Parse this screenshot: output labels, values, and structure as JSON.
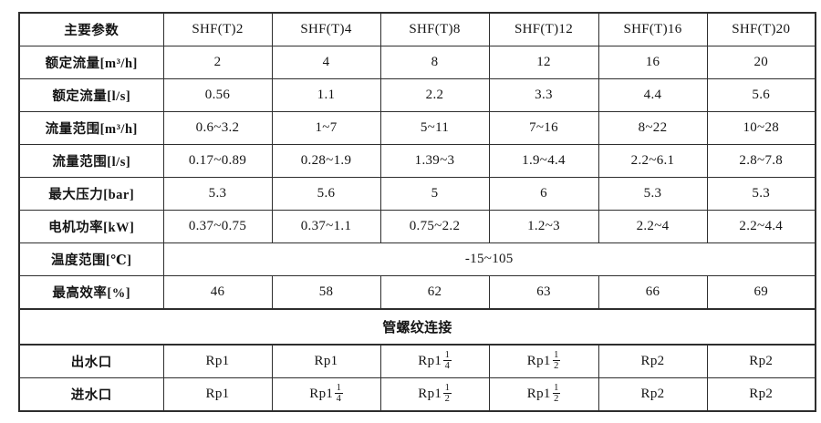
{
  "page": {
    "background_color": "#ffffff",
    "border_color": "#2e2e2e",
    "text_color": "#141414"
  },
  "table": {
    "header": {
      "param_label": "主要参数",
      "models": [
        "SHF(T)2",
        "SHF(T)4",
        "SHF(T)8",
        "SHF(T)12",
        "SHF(T)16",
        "SHF(T)20"
      ]
    },
    "rows": [
      {
        "type": "data",
        "label": "额定流量[m³/h]",
        "values": [
          "2",
          "4",
          "8",
          "12",
          "16",
          "20"
        ]
      },
      {
        "type": "data",
        "label": "额定流量[l/s]",
        "values": [
          "0.56",
          "1.1",
          "2.2",
          "3.3",
          "4.4",
          "5.6"
        ]
      },
      {
        "type": "data",
        "label": "流量范围[m³/h]",
        "values": [
          "0.6~3.2",
          "1~7",
          "5~11",
          "7~16",
          "8~22",
          "10~28"
        ]
      },
      {
        "type": "data",
        "label": "流量范围[l/s]",
        "values": [
          "0.17~0.89",
          "0.28~1.9",
          "1.39~3",
          "1.9~4.4",
          "2.2~6.1",
          "2.8~7.8"
        ]
      },
      {
        "type": "data",
        "label": "最大压力[bar]",
        "values": [
          "5.3",
          "5.6",
          "5",
          "6",
          "5.3",
          "5.3"
        ]
      },
      {
        "type": "data",
        "label": "电机功率[kW]",
        "values": [
          "0.37~0.75",
          "0.37~1.1",
          "0.75~2.2",
          "1.2~3",
          "2.2~4",
          "2.2~4.4"
        ]
      },
      {
        "type": "label-span",
        "label": "温度范围[℃]",
        "span_value": "-15~105"
      },
      {
        "type": "data",
        "label": "最高效率[%]",
        "values": [
          "46",
          "58",
          "62",
          "63",
          "66",
          "69"
        ]
      },
      {
        "type": "full-span",
        "text": "管螺纹连接"
      },
      {
        "type": "data",
        "label": "出水口",
        "values": [
          {
            "base": "Rp1"
          },
          {
            "base": "Rp1"
          },
          {
            "base": "Rp1",
            "num": "1",
            "den": "4"
          },
          {
            "base": "Rp1",
            "num": "1",
            "den": "2"
          },
          {
            "base": "Rp2"
          },
          {
            "base": "Rp2"
          }
        ]
      },
      {
        "type": "data",
        "label": "进水口",
        "values": [
          {
            "base": "Rp1"
          },
          {
            "base": "Rp1",
            "num": "1",
            "den": "4"
          },
          {
            "base": "Rp1",
            "num": "1",
            "den": "2"
          },
          {
            "base": "Rp1",
            "num": "1",
            "den": "2"
          },
          {
            "base": "Rp2"
          },
          {
            "base": "Rp2"
          }
        ]
      }
    ]
  }
}
